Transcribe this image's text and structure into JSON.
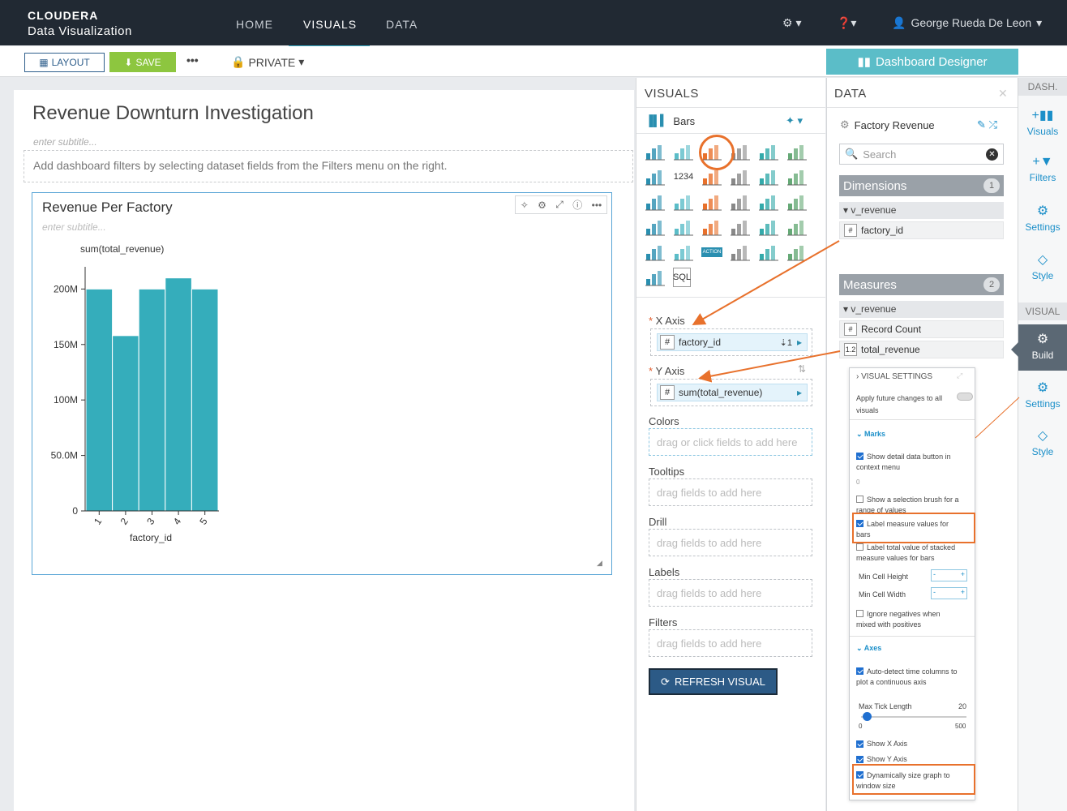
{
  "brand": {
    "line1": "CLOUDERA",
    "line2": "Data Visualization"
  },
  "nav": {
    "home": "HOME",
    "visuals": "VISUALS",
    "data": "DATA",
    "user": "George Rueda De Leon"
  },
  "toolbar": {
    "layout": "LAYOUT",
    "save": "SAVE",
    "more": "•••",
    "private": "PRIVATE",
    "designer": "Dashboard Designer"
  },
  "dashboard": {
    "title": "Revenue Downturn Investigation",
    "subtitle_placeholder": "enter subtitle...",
    "filter_hint": "Add dashboard filters by selecting dataset fields from the Filters menu on the right."
  },
  "visual": {
    "title": "Revenue Per Factory",
    "subtitle_placeholder": "enter subtitle..."
  },
  "chart_data": {
    "type": "bar",
    "categories": [
      "1",
      "2",
      "3",
      "4",
      "5"
    ],
    "values": [
      200000000,
      158000000,
      200000000,
      210000000,
      200000000
    ],
    "xlabel": "factory_id",
    "ylabel": "sum(total_revenue)",
    "yticks": [
      "0",
      "50.0M",
      "100M",
      "150M",
      "200M"
    ],
    "ylim": [
      0,
      220000000
    ],
    "color": "#35adbb"
  },
  "visuals_panel": {
    "header": "VISUALS",
    "selected_type": "Bars",
    "x_axis_label": "X Axis",
    "x_axis_field": "factory_id",
    "y_axis_label": "Y Axis",
    "y_axis_field": "sum(total_revenue)",
    "colors_label": "Colors",
    "colors_placeholder": "drag or click fields to add here",
    "tooltips_label": "Tooltips",
    "tooltips_placeholder": "drag fields to add here",
    "drill_label": "Drill",
    "drill_placeholder": "drag fields to add here",
    "labels_label": "Labels",
    "labels_placeholder": "drag fields to add here",
    "filters_label": "Filters",
    "filters_placeholder": "drag fields to add here",
    "refresh": "REFRESH VISUAL",
    "icon_number_label": "1234",
    "icon_action_label": "ACTION",
    "icon_sql_label": "SQL"
  },
  "data_panel": {
    "header": "DATA",
    "dataset": "Factory Revenue",
    "search_placeholder": "Search",
    "dimensions_label": "Dimensions",
    "dimensions_count": "1",
    "dim_group": "v_revenue",
    "dim_field": "factory_id",
    "measures_label": "Measures",
    "measures_count": "2",
    "meas_group": "v_revenue",
    "meas_field1": "Record Count",
    "meas_field2": "total_revenue",
    "meas_field2_type": "1.2"
  },
  "rail": {
    "dash_header": "DASH.",
    "visuals": "Visuals",
    "filters": "Filters",
    "settings": "Settings",
    "style": "Style",
    "visual_header": "VISUAL",
    "build": "Build",
    "settings2": "Settings",
    "style2": "Style"
  },
  "visual_settings": {
    "header": "VISUAL SETTINGS",
    "apply_future": "Apply future changes to all visuals",
    "marks": "Marks",
    "show_detail": "Show detail data button in context menu",
    "slider_min": "0",
    "selection_brush": "Show a selection brush for a range of values",
    "label_measure": "Label measure values for bars",
    "label_total": "Label total value of stacked measure values for bars",
    "min_cell_height": "Min Cell Height",
    "min_cell_width": "Min Cell Width",
    "ignore_neg": "Ignore negatives when mixed with positives",
    "axes": "Axes",
    "auto_detect": "Auto-detect time columns to plot a continuous axis",
    "max_tick": "Max Tick Length",
    "max_tick_value": "20",
    "max_tick_min": "0",
    "max_tick_max": "500",
    "show_x": "Show X Axis",
    "show_y": "Show Y Axis",
    "dyn_size": "Dynamically size graph to window size"
  }
}
